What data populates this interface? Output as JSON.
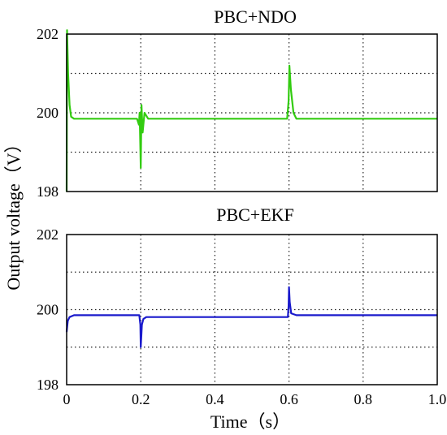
{
  "chart_data": [
    {
      "type": "line",
      "title": "PBC+NDO",
      "ylabel": "Output voltage（V）",
      "xlabel": "",
      "xlim": [
        0,
        1.0
      ],
      "ylim": [
        198,
        202
      ],
      "y_ticks": [
        "198",
        "200",
        "202"
      ],
      "x_ticks": [],
      "grid": true,
      "series": [
        {
          "color": "#33cc11",
          "x": [
            0,
            0.001,
            0.004,
            0.008,
            0.012,
            0.02,
            0.05,
            0.19,
            0.195,
            0.197,
            0.2,
            0.202,
            0.205,
            0.21,
            0.22,
            0.3,
            0.5,
            0.595,
            0.599,
            0.601,
            0.605,
            0.612,
            0.62,
            0.7,
            0.8,
            0.9,
            1.0
          ],
          "values": [
            198.0,
            202.1,
            201.0,
            200.2,
            199.9,
            199.85,
            199.85,
            199.85,
            199.7,
            200.0,
            198.6,
            200.2,
            199.5,
            200.0,
            199.85,
            199.85,
            199.85,
            199.85,
            200.3,
            201.2,
            200.6,
            200.0,
            199.85,
            199.85,
            199.85,
            199.85,
            199.85
          ]
        }
      ]
    },
    {
      "type": "line",
      "title": "PBC+EKF",
      "ylabel": "",
      "xlabel": "Time（s）",
      "xlim": [
        0,
        1.0
      ],
      "ylim": [
        198,
        202
      ],
      "y_ticks": [
        "198",
        "200",
        "202"
      ],
      "x_ticks": [
        "0",
        "0.2",
        "0.4",
        "0.6",
        "0.8",
        "1.0"
      ],
      "grid": true,
      "series": [
        {
          "color": "#1a1acc",
          "x": [
            0,
            0.003,
            0.008,
            0.02,
            0.05,
            0.196,
            0.199,
            0.2,
            0.203,
            0.207,
            0.215,
            0.3,
            0.5,
            0.597,
            0.599,
            0.6,
            0.602,
            0.606,
            0.62,
            0.8,
            1.0
          ],
          "values": [
            199.4,
            199.7,
            199.8,
            199.85,
            199.85,
            199.85,
            199.6,
            199.0,
            199.6,
            199.75,
            199.8,
            199.8,
            199.8,
            199.8,
            200.1,
            200.6,
            200.2,
            199.9,
            199.85,
            199.85,
            199.85
          ]
        }
      ]
    }
  ]
}
